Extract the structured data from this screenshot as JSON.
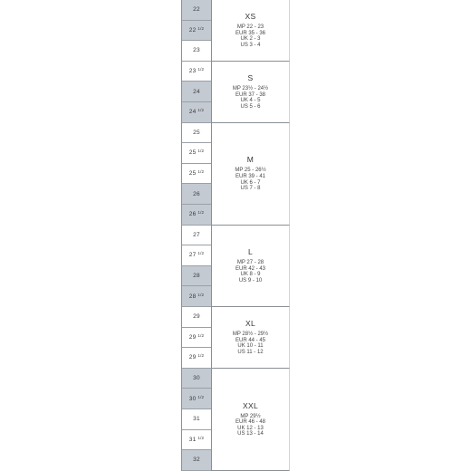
{
  "sizes": [
    {
      "num": "22",
      "half": "",
      "shade": true
    },
    {
      "num": "22",
      "half": "1/2",
      "shade": true
    },
    {
      "num": "23",
      "half": "",
      "shade": false
    },
    {
      "num": "23",
      "half": "1/2",
      "shade": false
    },
    {
      "num": "24",
      "half": "",
      "shade": true
    },
    {
      "num": "24",
      "half": "1/2",
      "shade": true
    },
    {
      "num": "25",
      "half": "",
      "shade": false
    },
    {
      "num": "25",
      "half": "1/2",
      "shade": false
    },
    {
      "num": "25",
      "half": "1/2",
      "shade": false
    },
    {
      "num": "26",
      "half": "",
      "shade": true
    },
    {
      "num": "26",
      "half": "1/2",
      "shade": true
    },
    {
      "num": "27",
      "half": "",
      "shade": false
    },
    {
      "num": "27",
      "half": "1/2",
      "shade": false
    },
    {
      "num": "28",
      "half": "",
      "shade": true
    },
    {
      "num": "28",
      "half": "1/2",
      "shade": true
    },
    {
      "num": "29",
      "half": "",
      "shade": false
    },
    {
      "num": "29",
      "half": "1/2",
      "shade": false
    },
    {
      "num": "29",
      "half": "1/2",
      "shade": false
    },
    {
      "num": "30",
      "half": "",
      "shade": true
    },
    {
      "num": "30",
      "half": "1/2",
      "shade": true
    },
    {
      "num": "31",
      "half": "",
      "shade": false
    },
    {
      "num": "31",
      "half": "1/2",
      "shade": false
    },
    {
      "num": "32",
      "half": "",
      "shade": true
    }
  ],
  "bands": [
    {
      "label": "XS",
      "lines": [
        "MP 22 - 23",
        "EUR 35 - 36",
        "UK 2 - 3",
        "US 3 - 4"
      ]
    },
    {
      "label": "S",
      "lines": [
        "MP 23½ - 24½",
        "EUR 37 - 38",
        "UK 4 - 5",
        "US 5 - 6"
      ]
    },
    {
      "label": "M",
      "lines": [
        "MP 25 - 26½",
        "EUR 39 - 41",
        "UK 6 - 7",
        "US 7 - 8"
      ]
    },
    {
      "label": "L",
      "lines": [
        "MP 27 - 28",
        "EUR 42 - 43",
        "UK 8 - 9",
        "US 9 - 10"
      ]
    },
    {
      "label": "XL",
      "lines": [
        "MP 28½ - 29½",
        "EUR 44 - 45",
        "UK 10 - 11",
        "US 11 - 12"
      ]
    },
    {
      "label": "XXL",
      "lines": [
        "MP 29½",
        "EUR 46 - 48",
        "UK 12 - 13",
        "US 13 - 14"
      ]
    }
  ]
}
